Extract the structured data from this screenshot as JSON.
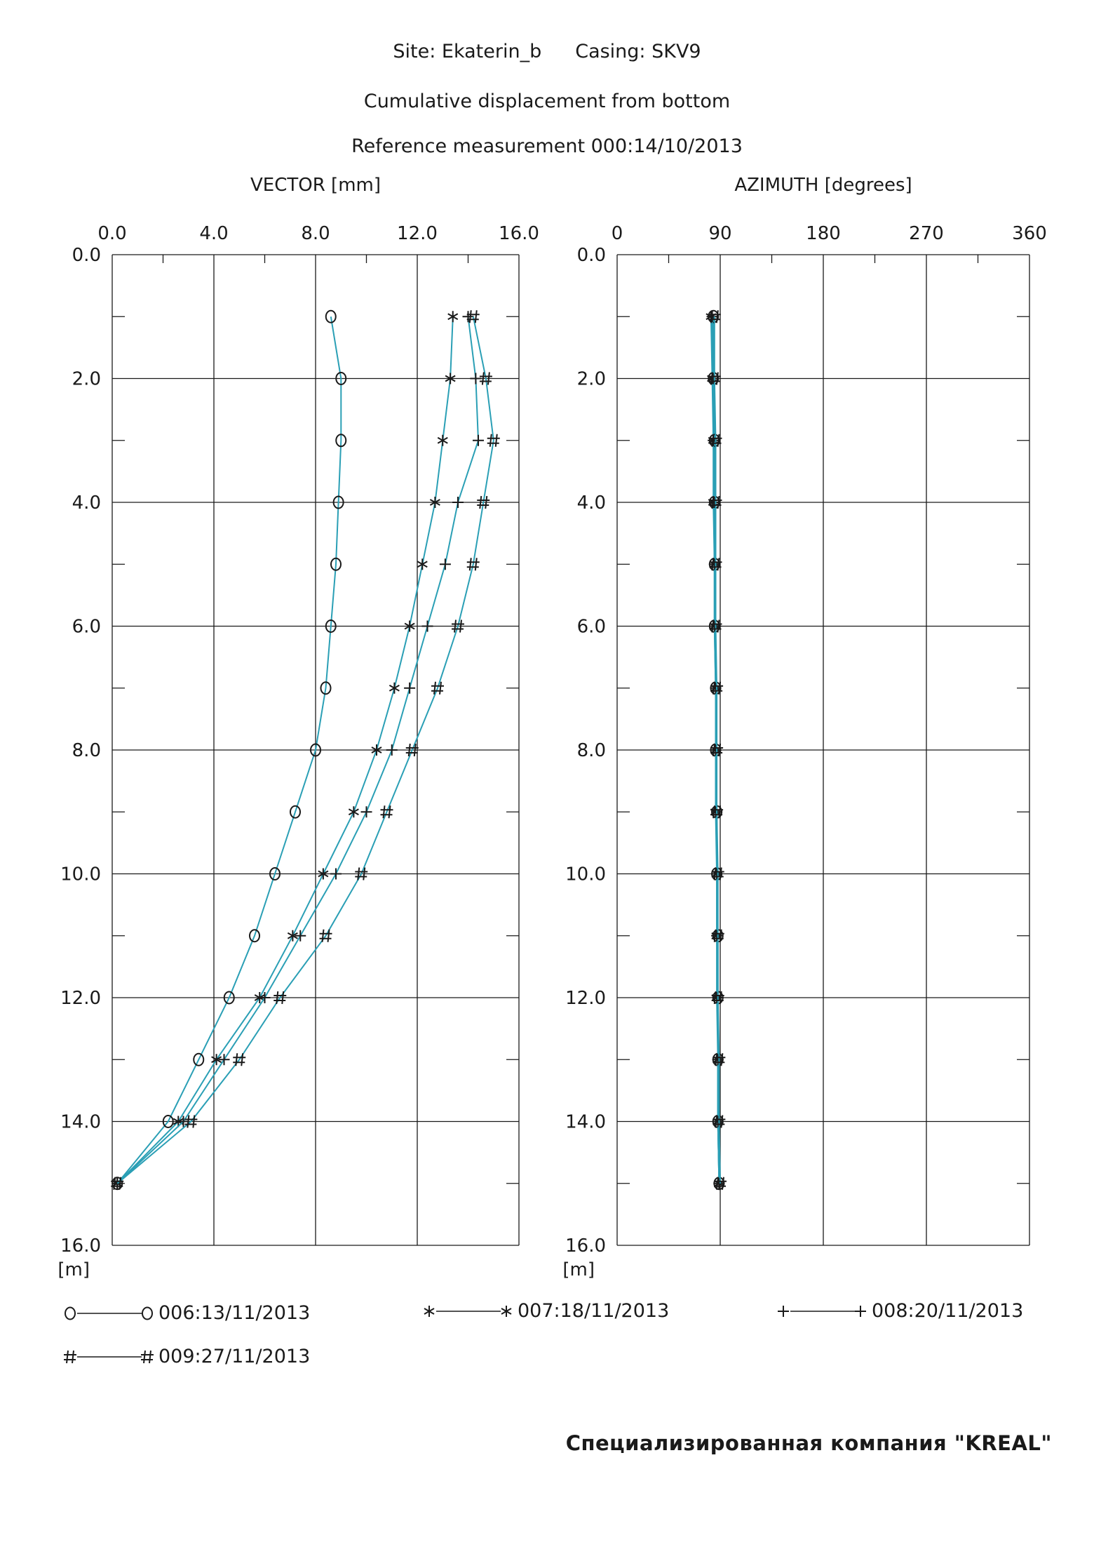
{
  "header": {
    "site": "Site: Ekaterin_b",
    "casing": "Casing: SKV9",
    "subtitle": "Cumulative displacement from bottom",
    "reference": "Reference measurement  000:14/10/2013"
  },
  "company": "Специализированная компания  \"KREAL\"",
  "colors": {
    "line": "#2a9fb5",
    "marker": "#1a1a1a",
    "grid": "#1a1a1a"
  },
  "chart_data": [
    {
      "type": "line",
      "title": "VECTOR [mm]",
      "xlabel": "VECTOR [mm]",
      "ylabel": "[m]",
      "xlim": [
        0,
        16
      ],
      "ylim": [
        16,
        0
      ],
      "x_ticks": [
        "0.0",
        "4.0",
        "8.0",
        "12.0",
        "16.0"
      ],
      "y_ticks": [
        "0.0",
        "2.0",
        "4.0",
        "6.0",
        "8.0",
        "10.0",
        "12.0",
        "14.0",
        "16.0"
      ],
      "y_unit": "[m]",
      "grid": true,
      "depth": [
        1,
        2,
        3,
        4,
        5,
        6,
        7,
        8,
        9,
        10,
        11,
        12,
        13,
        14,
        15
      ],
      "series": [
        {
          "name": "006:13/11/2013",
          "marker": "O",
          "values": [
            8.6,
            9.0,
            9.0,
            8.9,
            8.8,
            8.6,
            8.4,
            8.0,
            7.2,
            6.4,
            5.6,
            4.6,
            3.4,
            2.2,
            0.2
          ]
        },
        {
          "name": "007:18/11/2013",
          "marker": "*",
          "values": [
            13.4,
            13.3,
            13.0,
            12.7,
            12.2,
            11.7,
            11.1,
            10.4,
            9.5,
            8.3,
            7.1,
            5.8,
            4.1,
            2.6,
            0.2
          ]
        },
        {
          "name": "008:20/11/2013",
          "marker": "+",
          "values": [
            14.0,
            14.3,
            14.4,
            13.6,
            13.1,
            12.4,
            11.7,
            11.0,
            10.0,
            8.8,
            7.4,
            6.0,
            4.4,
            2.8,
            0.2
          ]
        },
        {
          "name": "009:27/11/2013",
          "marker": "#",
          "values": [
            14.2,
            14.7,
            15.0,
            14.6,
            14.2,
            13.6,
            12.8,
            11.8,
            10.8,
            9.8,
            8.4,
            6.6,
            5.0,
            3.1,
            0.2
          ]
        }
      ]
    },
    {
      "type": "line",
      "title": "AZIMUTH [degrees]",
      "xlabel": "AZIMUTH [degrees]",
      "ylabel": "[m]",
      "xlim": [
        0,
        360
      ],
      "ylim": [
        16,
        0
      ],
      "x_ticks": [
        "0",
        "90",
        "180",
        "270",
        "360"
      ],
      "y_ticks": [
        "0.0",
        "2.0",
        "4.0",
        "6.0",
        "8.0",
        "10.0",
        "12.0",
        "14.0",
        "16.0"
      ],
      "y_unit": "[m]",
      "grid": true,
      "depth": [
        1,
        2,
        3,
        4,
        5,
        6,
        7,
        8,
        9,
        10,
        11,
        12,
        13,
        14,
        15
      ],
      "series": [
        {
          "name": "006:13/11/2013",
          "marker": "O",
          "values": [
            84,
            84,
            85,
            85,
            85,
            85,
            86,
            86,
            87,
            87,
            88,
            88,
            88,
            88,
            89
          ]
        },
        {
          "name": "007:18/11/2013",
          "marker": "*",
          "values": [
            82,
            83,
            84,
            84,
            85,
            85,
            86,
            86,
            86,
            87,
            87,
            87,
            88,
            88,
            89
          ]
        },
        {
          "name": "008:20/11/2013",
          "marker": "+",
          "values": [
            83,
            84,
            84,
            85,
            85,
            86,
            86,
            86,
            87,
            87,
            87,
            88,
            88,
            88,
            89
          ]
        },
        {
          "name": "009:27/11/2013",
          "marker": "#",
          "values": [
            85,
            85,
            86,
            86,
            86,
            86,
            87,
            87,
            87,
            88,
            88,
            88,
            89,
            89,
            90
          ]
        }
      ]
    }
  ],
  "legend": [
    {
      "left": "O",
      "right": "O",
      "label": "006:13/11/2013"
    },
    {
      "left": "*",
      "right": "*",
      "label": "007:18/11/2013"
    },
    {
      "left": "+",
      "right": "+",
      "label": "008:20/11/2013"
    },
    {
      "left": "#",
      "right": "#",
      "label": "009:27/11/2013"
    }
  ]
}
